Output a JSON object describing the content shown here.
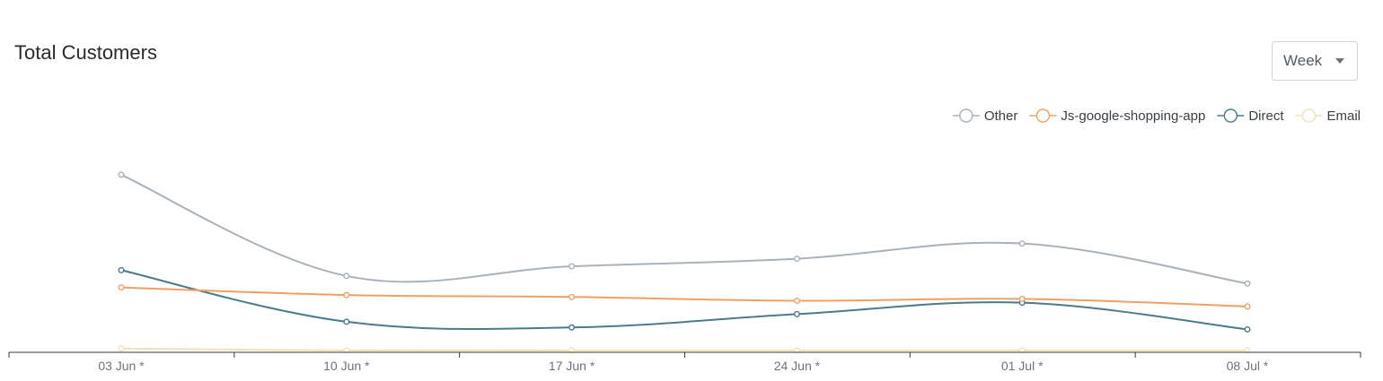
{
  "header": {
    "title": "Total Customers"
  },
  "range_select": {
    "value": "Week"
  },
  "chart_data": {
    "type": "line",
    "title": "Total Customers",
    "categories": [
      "03 Jun *",
      "10 Jun *",
      "17 Jun *",
      "24 Jun *",
      "01 Jul *",
      "08 Jul *"
    ],
    "ylim": [
      0,
      100
    ],
    "grid": false,
    "legend_position": "top-right",
    "smooth": true,
    "series": [
      {
        "name": "Other",
        "color": "#aab1b9",
        "values": [
          93,
          40,
          45,
          49,
          57,
          36
        ]
      },
      {
        "name": "Js-google-shopping-app",
        "color": "#f0a064",
        "values": [
          34,
          30,
          29,
          27,
          28,
          24
        ]
      },
      {
        "name": "Direct",
        "color": "#4a7a8c",
        "values": [
          43,
          16,
          13,
          20,
          26,
          12
        ]
      },
      {
        "name": "Email",
        "color": "#f0e2b4",
        "values": [
          2,
          1,
          1,
          1,
          1,
          1
        ]
      }
    ]
  }
}
